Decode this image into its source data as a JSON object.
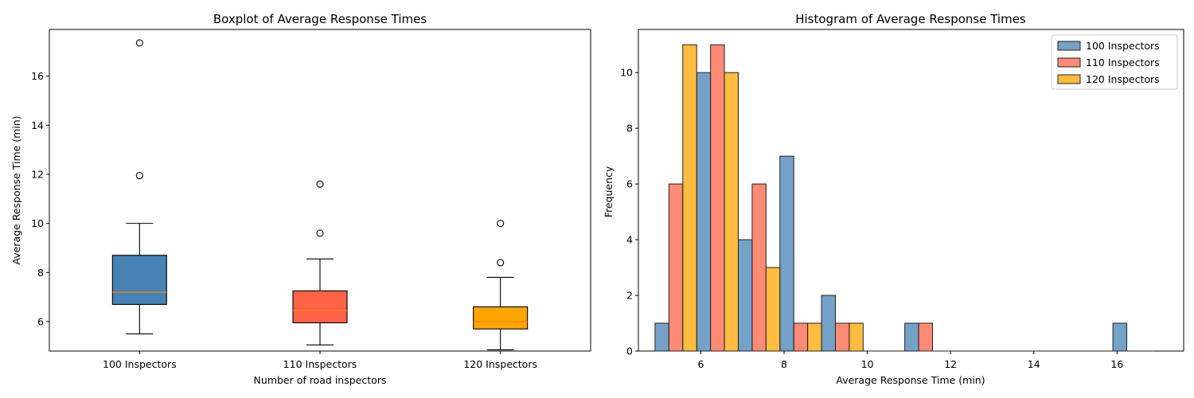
{
  "chart_data": [
    {
      "type": "box",
      "title": "Boxplot of Average Response Times",
      "xlabel": "Number of road inspectors",
      "ylabel": "Average Response Time (min)",
      "ylim": [
        4.8,
        17.9
      ],
      "yticks": [
        6,
        8,
        10,
        12,
        14,
        16
      ],
      "categories": [
        "100 Inspectors",
        "110 Inspectors",
        "120 Inspectors"
      ],
      "colors": [
        "#4682b4",
        "#ff6347",
        "#ffa500"
      ],
      "median_color": "#ff7f0e",
      "boxes": [
        {
          "name": "100 Inspectors",
          "whisker_low": 5.5,
          "q1": 6.7,
          "median": 7.2,
          "q3": 8.7,
          "whisker_high": 10.0,
          "outliers": [
            11.95,
            17.35
          ]
        },
        {
          "name": "110 Inspectors",
          "whisker_low": 5.05,
          "q1": 5.95,
          "median": 6.45,
          "q3": 7.25,
          "whisker_high": 8.55,
          "outliers": [
            9.6,
            11.6
          ]
        },
        {
          "name": "120 Inspectors",
          "whisker_low": 4.85,
          "q1": 5.7,
          "median": 6.0,
          "q3": 6.6,
          "whisker_high": 7.8,
          "outliers": [
            8.4,
            10.0
          ]
        }
      ]
    },
    {
      "type": "histogram",
      "title": "Histogram of Average Response Times",
      "xlabel": "Average Response Time (min)",
      "ylabel": "Frequency",
      "xlim": [
        4.5,
        17.6
      ],
      "ylim": [
        0,
        11.55
      ],
      "xticks": [
        6,
        8,
        10,
        12,
        14,
        16
      ],
      "yticks": [
        0,
        2,
        4,
        6,
        8,
        10
      ],
      "bin_start": 4.9,
      "bin_width": 1.0,
      "bins": 12,
      "legend_position": "top-right",
      "series": [
        {
          "name": "100 Inspectors",
          "color": "#4682b4",
          "values": [
            1,
            10,
            4,
            7,
            2,
            0,
            1,
            0,
            0,
            0,
            0,
            1
          ]
        },
        {
          "name": "110 Inspectors",
          "color": "#ff6347",
          "values": [
            6,
            11,
            6,
            1,
            1,
            0,
            1,
            0,
            0,
            0,
            0,
            0
          ]
        },
        {
          "name": "120 Inspectors",
          "color": "#ffa500",
          "values": [
            11,
            10,
            3,
            1,
            1,
            0,
            0,
            0,
            0,
            0,
            0,
            0
          ]
        }
      ]
    }
  ]
}
